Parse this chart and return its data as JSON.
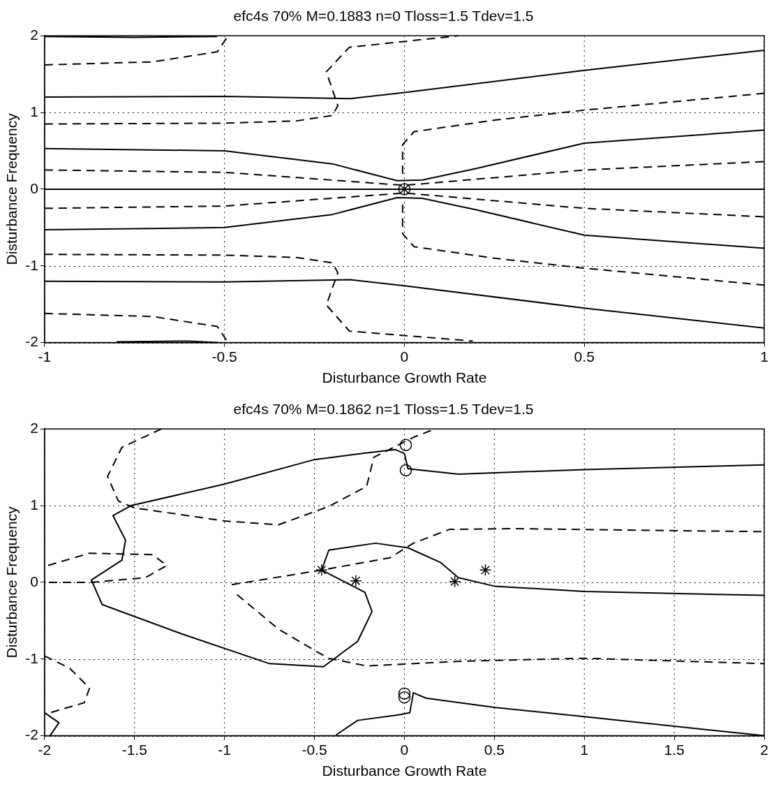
{
  "chart_data": [
    {
      "type": "line",
      "title": "efc4s 70% M=0.1883 n=0 Tloss=1.5 Tdev=1.5",
      "xlabel": "Disturbance Growth Rate",
      "ylabel": "Disturbance Frequency",
      "xlim": [
        -1,
        1
      ],
      "ylim": [
        -2,
        2
      ],
      "xticks": [
        -1,
        -0.5,
        0,
        0.5,
        1
      ],
      "yticks": [
        -2,
        -1,
        0,
        1,
        2
      ],
      "grid": true,
      "legend": false,
      "series": [
        {
          "type": "line",
          "line_style": "solid",
          "color": "#000000",
          "x": [
            -1,
            1
          ],
          "values": [
            0,
            0
          ]
        },
        {
          "type": "line",
          "line_style": "solid",
          "color": "#000000",
          "x": [
            -1,
            -0.5,
            -0.15,
            0,
            0.5,
            1
          ],
          "values": [
            1.2,
            1.21,
            1.18,
            1.26,
            1.55,
            1.81
          ]
        },
        {
          "type": "line",
          "line_style": "solid",
          "color": "#000000",
          "x": [
            -1,
            -0.5,
            -0.15,
            0,
            0.5,
            1
          ],
          "values": [
            -1.2,
            -1.21,
            -1.18,
            -1.26,
            -1.55,
            -1.81
          ]
        },
        {
          "type": "line",
          "line_style": "solid",
          "color": "#000000",
          "x": [
            -1,
            -0.5,
            -0.2,
            -0.02,
            0.05,
            0.2,
            0.5,
            1
          ],
          "values": [
            0.53,
            0.5,
            0.33,
            0.11,
            0.12,
            0.27,
            0.6,
            0.77
          ]
        },
        {
          "type": "line",
          "line_style": "solid",
          "color": "#000000",
          "x": [
            -1,
            -0.5,
            -0.2,
            -0.02,
            0.05,
            0.2,
            0.5,
            1
          ],
          "values": [
            -0.53,
            -0.5,
            -0.33,
            -0.11,
            -0.12,
            -0.27,
            -0.6,
            -0.77
          ]
        },
        {
          "type": "line",
          "line_style": "solid",
          "color": "#000000",
          "x": [
            -1,
            -0.75,
            -0.52
          ],
          "values": [
            1.99,
            1.98,
            1.99
          ]
        },
        {
          "type": "line",
          "line_style": "solid",
          "color": "#000000",
          "x": [
            -0.8,
            -0.6,
            -0.52
          ],
          "values": [
            -1.99,
            -1.98,
            -2
          ]
        },
        {
          "type": "line",
          "line_style": "dashed",
          "color": "#000000",
          "x": [
            -1,
            -0.7,
            -0.52,
            -0.49
          ],
          "values": [
            1.62,
            1.66,
            1.79,
            2
          ]
        },
        {
          "type": "line",
          "line_style": "dashed",
          "color": "#000000",
          "x": [
            -1,
            -0.7,
            -0.52,
            -0.49
          ],
          "values": [
            -1.62,
            -1.66,
            -1.79,
            -2
          ]
        },
        {
          "type": "line",
          "line_style": "dashed",
          "color": "#000000",
          "x": [
            -1,
            -0.5,
            -0.3,
            -0.2,
            -0.185,
            -0.217,
            -0.153,
            0.15
          ],
          "values": [
            0.85,
            0.86,
            0.89,
            0.96,
            1.09,
            1.53,
            1.85,
            2
          ]
        },
        {
          "type": "line",
          "line_style": "dashed",
          "color": "#000000",
          "x": [
            -1,
            -0.5,
            -0.3,
            -0.2,
            -0.185,
            -0.217,
            -0.153,
            0.19
          ],
          "values": [
            -0.85,
            -0.86,
            -0.89,
            -0.96,
            -1.09,
            -1.51,
            -1.85,
            -1.98
          ]
        },
        {
          "type": "line",
          "line_style": "dashed",
          "color": "#000000",
          "x": [
            -0.005,
            -0.005,
            0.027,
            0.25,
            0.5,
            1
          ],
          "values": [
            0.2,
            0.58,
            0.75,
            0.9,
            1.03,
            1.25
          ]
        },
        {
          "type": "line",
          "line_style": "dashed",
          "color": "#000000",
          "x": [
            -0.005,
            -0.005,
            0.027,
            0.25,
            0.5,
            1
          ],
          "values": [
            -0.2,
            -0.58,
            -0.75,
            -0.9,
            -1.03,
            -1.25
          ]
        },
        {
          "type": "line",
          "line_style": "dashed",
          "color": "#000000",
          "x": [
            -1,
            -0.5,
            0,
            0.5,
            1
          ],
          "values": [
            0.25,
            0.22,
            0.05,
            0.25,
            0.36
          ]
        },
        {
          "type": "line",
          "line_style": "dashed",
          "color": "#000000",
          "x": [
            -1,
            -0.5,
            0,
            0.5,
            1
          ],
          "values": [
            -0.25,
            -0.22,
            -0.05,
            -0.25,
            -0.36
          ]
        },
        {
          "type": "scatter",
          "marker": "circle",
          "color": "#000000",
          "x": [
            0
          ],
          "values": [
            0
          ]
        },
        {
          "type": "scatter",
          "marker": "cross",
          "color": "#000000",
          "x": [
            0
          ],
          "values": [
            0
          ]
        }
      ]
    },
    {
      "type": "line",
      "title": "efc4s 70% M=0.1862 n=1 Tloss=1.5 Tdev=1.5",
      "xlabel": "Disturbance Growth Rate",
      "ylabel": "Disturbance Frequency",
      "xlim": [
        -2,
        2
      ],
      "ylim": [
        -2,
        2
      ],
      "xticks": [
        -2,
        -1.5,
        -1,
        -0.5,
        0,
        0.5,
        1,
        1.5,
        2
      ],
      "yticks": [
        -2,
        -1,
        0,
        1,
        2
      ],
      "grid": true,
      "legend": false,
      "series": [
        {
          "type": "line",
          "line_style": "solid",
          "color": "#000000",
          "x": [
            0,
            0.02,
            0.3,
            1,
            2
          ],
          "values": [
            1.68,
            1.48,
            1.41,
            1.47,
            1.53
          ]
        },
        {
          "type": "line",
          "line_style": "solid",
          "color": "#000000",
          "x": [
            0,
            -0.05,
            -0.2,
            -0.5,
            -1,
            -1.52,
            -1.62,
            -1.55,
            -1.57,
            -1.74,
            -1.68,
            -1.24,
            -0.75,
            -0.45,
            -0.26,
            -0.18,
            -0.22,
            -0.46,
            -0.42,
            -0.16,
            0.02,
            0.2,
            0.3,
            0.5,
            1,
            2
          ],
          "values": [
            1.68,
            1.73,
            1.69,
            1.6,
            1.28,
            1,
            0.87,
            0.55,
            0.29,
            0.03,
            -0.29,
            -0.67,
            -1.06,
            -1.1,
            -0.77,
            -0.38,
            -0.13,
            0.16,
            0.42,
            0.51,
            0.45,
            0.26,
            0.06,
            -0.05,
            -0.12,
            -0.17
          ]
        },
        {
          "type": "line",
          "line_style": "solid",
          "color": "#000000",
          "x": [
            -2,
            -1.92,
            -1.97
          ],
          "values": [
            -1.7,
            -1.83,
            -2
          ]
        },
        {
          "type": "line",
          "line_style": "solid",
          "color": "#000000",
          "x": [
            -0.38,
            -0.26,
            -0.04,
            0.03,
            0.05,
            0.12,
            0.5,
            1,
            2
          ],
          "values": [
            -1.99,
            -1.8,
            -1.73,
            -1.7,
            -1.44,
            -1.51,
            -1.63,
            -1.75,
            -2
          ]
        },
        {
          "type": "line",
          "line_style": "dashed",
          "color": "#000000",
          "x": [
            -1.35,
            -1.57,
            -1.65,
            -1.59,
            -1.5,
            -1,
            -0.7,
            -0.42,
            -0.21,
            -0.17,
            0.05,
            0.17
          ],
          "values": [
            2,
            1.76,
            1.38,
            1.06,
            0.97,
            0.8,
            0.75,
            0.99,
            1.25,
            1.63,
            1.89,
            2
          ]
        },
        {
          "type": "line",
          "line_style": "dashed",
          "color": "#000000",
          "x": [
            -1.98,
            -1.75,
            -1.4,
            -1.32,
            -1.44,
            -1.74,
            -2
          ],
          "values": [
            0.22,
            0.38,
            0.36,
            0.22,
            0.06,
            0,
            0
          ]
        },
        {
          "type": "line",
          "line_style": "dashed",
          "color": "#000000",
          "x": [
            -0.96,
            -0.88,
            -0.46,
            -0.08,
            0.05,
            0.25,
            0.6,
            2
          ],
          "values": [
            -0.03,
            0,
            0.16,
            0.32,
            0.51,
            0.69,
            0.7,
            0.66
          ]
        },
        {
          "type": "line",
          "line_style": "dashed",
          "color": "#000000",
          "x": [
            -0.93,
            -0.7,
            -0.49,
            -0.42,
            -0.21,
            0.3,
            1,
            2
          ],
          "values": [
            -0.16,
            -0.61,
            -0.9,
            -0.99,
            -1.09,
            -1.03,
            -0.99,
            -1.06
          ]
        },
        {
          "type": "line",
          "line_style": "dashed",
          "color": "#000000",
          "x": [
            -2,
            -1.86,
            -1.75,
            -1.78,
            -1.97
          ],
          "values": [
            -0.96,
            -1.12,
            -1.38,
            -1.57,
            -1.7
          ]
        },
        {
          "type": "scatter",
          "marker": "circle",
          "color": "#000000",
          "x": [
            0.008,
            0.008,
            0,
            0
          ],
          "values": [
            1.79,
            1.46,
            -1.45,
            -1.5
          ]
        },
        {
          "type": "scatter",
          "marker": "cross",
          "color": "#000000",
          "x": [
            -0.46,
            -0.27,
            0.28,
            0.45
          ],
          "values": [
            0.16,
            0.02,
            0.01,
            0.16
          ]
        }
      ]
    }
  ]
}
